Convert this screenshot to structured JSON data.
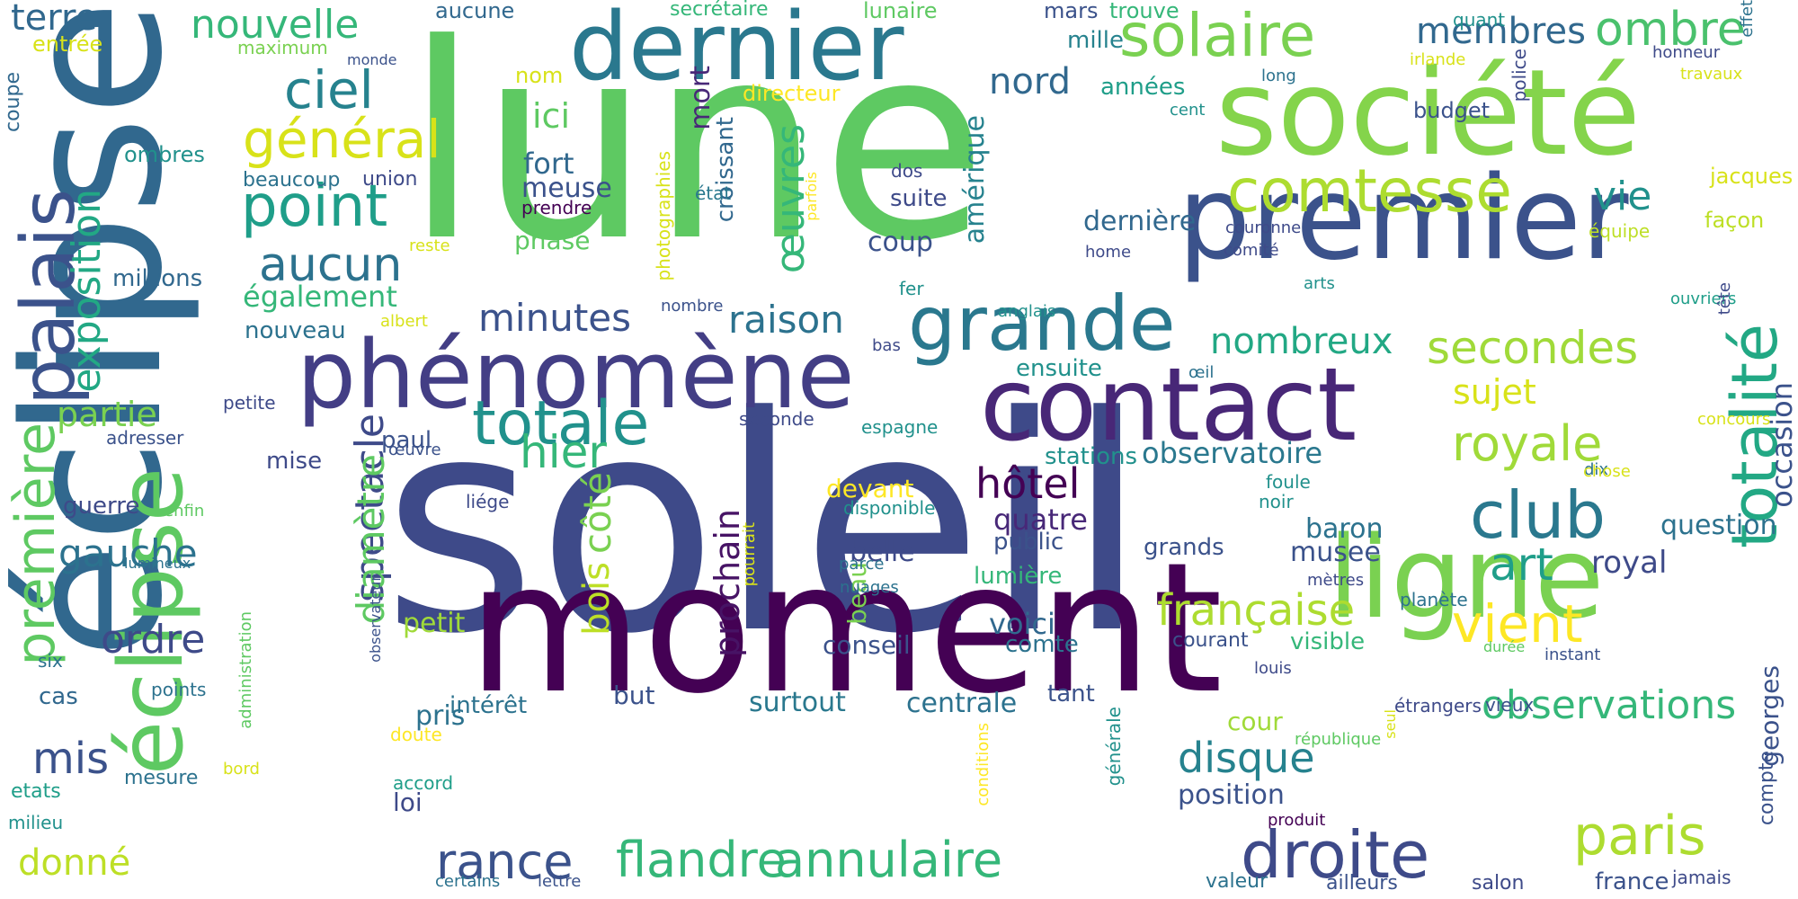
{
  "words": [
    {
      "text": "soleil",
      "color": "#3e4a89"
    },
    {
      "text": "lune",
      "color": "#5ec962"
    },
    {
      "text": "éclipse",
      "color": "#31688e"
    },
    {
      "text": "moment",
      "color": "#440154"
    },
    {
      "text": "société",
      "color": "#84d44b"
    },
    {
      "text": "premier",
      "color": "#3b528b"
    },
    {
      "text": "ligne",
      "color": "#7ad151"
    },
    {
      "text": "contact",
      "color": "#482777"
    },
    {
      "text": "dernier",
      "color": "#2a788e"
    },
    {
      "text": "phénomène",
      "color": "#433e85"
    },
    {
      "text": "éclipse",
      "color": "#5ec962"
    },
    {
      "text": "palais",
      "color": "#3b528b"
    },
    {
      "text": "solaire",
      "color": "#7ad151"
    },
    {
      "text": "comtesse",
      "color": "#addc30"
    },
    {
      "text": "totalité",
      "color": "#22a884"
    },
    {
      "text": "grande",
      "color": "#2a788e"
    },
    {
      "text": "droite",
      "color": "#3e4a89"
    },
    {
      "text": "totale",
      "color": "#21918c"
    },
    {
      "text": "club",
      "color": "#2a788e"
    },
    {
      "text": "point",
      "color": "#1f9e89"
    },
    {
      "text": "première",
      "color": "#5ec962"
    },
    {
      "text": "annulaire",
      "color": "#35b779"
    },
    {
      "text": "flandre",
      "color": "#35b779"
    },
    {
      "text": "paris",
      "color": "#addc30"
    },
    {
      "text": "royale",
      "color": "#a0da39"
    },
    {
      "text": "rance",
      "color": "#3b528b"
    },
    {
      "text": "ciel",
      "color": "#26828e"
    },
    {
      "text": "général",
      "color": "#d8e219"
    },
    {
      "text": "secondes",
      "color": "#a0da39"
    },
    {
      "text": "exposition",
      "color": "#22a884"
    },
    {
      "text": "observations",
      "color": "#35b779"
    },
    {
      "text": "française",
      "color": "#addc30"
    },
    {
      "text": "spectacle",
      "color": "#3e4a89"
    },
    {
      "text": "vient",
      "color": "#fde725"
    },
    {
      "text": "aucun",
      "color": "#2c728e"
    },
    {
      "text": "ombre",
      "color": "#4ac16d"
    },
    {
      "text": "hôtel",
      "color": "#440154"
    },
    {
      "text": "membres",
      "color": "#31688e"
    },
    {
      "text": "disque",
      "color": "#26828e"
    },
    {
      "text": "art",
      "color": "#1f9e89"
    },
    {
      "text": "nouvelle",
      "color": "#35b779"
    },
    {
      "text": "diamètre",
      "color": "#5ec962"
    },
    {
      "text": "minutes",
      "color": "#3b528b"
    },
    {
      "text": "raison",
      "color": "#2c728e"
    },
    {
      "text": "hier",
      "color": "#35b779"
    },
    {
      "text": "nombreux",
      "color": "#22a884"
    },
    {
      "text": "côté",
      "color": "#7ad151"
    },
    {
      "text": "ordre",
      "color": "#3e4a89"
    },
    {
      "text": "gauche",
      "color": "#2c728e"
    },
    {
      "text": "œuvres",
      "color": "#35b779"
    },
    {
      "text": "vie",
      "color": "#21918c"
    },
    {
      "text": "bois",
      "color": "#bddf26"
    },
    {
      "text": "mis",
      "color": "#3b528b"
    },
    {
      "text": "terre",
      "color": "#31688e"
    },
    {
      "text": "partie",
      "color": "#7ad151"
    },
    {
      "text": "ici",
      "color": "#5ec962"
    },
    {
      "text": "donné",
      "color": "#bddf26"
    },
    {
      "text": "prochain",
      "color": "#471365"
    },
    {
      "text": "sujet",
      "color": "#d8e219"
    },
    {
      "text": "observatoire",
      "color": "#2a788e"
    },
    {
      "text": "occasion",
      "color": "#3b528b"
    },
    {
      "text": "nord",
      "color": "#31688e"
    },
    {
      "text": "fort",
      "color": "#31688e"
    },
    {
      "text": "royal",
      "color": "#3e4a89"
    },
    {
      "text": "voici",
      "color": "#31688e"
    },
    {
      "text": "quatre",
      "color": "#482878"
    },
    {
      "text": "mort",
      "color": "#482878"
    },
    {
      "text": "croissant",
      "color": "#31688e"
    },
    {
      "text": "également",
      "color": "#35b779"
    },
    {
      "text": "nouveau",
      "color": "#2c728e"
    },
    {
      "text": "amérique",
      "color": "#26828e"
    },
    {
      "text": "dernière",
      "color": "#31688e"
    },
    {
      "text": "georges",
      "color": "#3b528b"
    },
    {
      "text": "question",
      "color": "#2c728e"
    },
    {
      "text": "position",
      "color": "#3b528b"
    },
    {
      "text": "belle",
      "color": "#3e4a89"
    },
    {
      "text": "baron",
      "color": "#2c728e"
    },
    {
      "text": "musee",
      "color": "#3b528b"
    },
    {
      "text": "centrale",
      "color": "#2c728e"
    },
    {
      "text": "surtout",
      "color": "#2a788e"
    },
    {
      "text": "petit",
      "color": "#a0da39"
    },
    {
      "text": "millions",
      "color": "#31688e"
    },
    {
      "text": "meuse",
      "color": "#3b528b"
    },
    {
      "text": "phase",
      "color": "#5ec962"
    },
    {
      "text": "coup",
      "color": "#3b528b"
    },
    {
      "text": "suite",
      "color": "#3e4a89"
    },
    {
      "text": "ensuite",
      "color": "#21918c"
    },
    {
      "text": "stations",
      "color": "#21918c"
    },
    {
      "text": "paul",
      "color": "#3b528b"
    },
    {
      "text": "mise",
      "color": "#3e4a89"
    },
    {
      "text": "guerre",
      "color": "#3e4a89"
    },
    {
      "text": "cas",
      "color": "#31688e"
    },
    {
      "text": "pris",
      "color": "#2c728e"
    },
    {
      "text": "intérêt",
      "color": "#2c728e"
    },
    {
      "text": "but",
      "color": "#3b528b"
    },
    {
      "text": "loi",
      "color": "#3e4a89"
    },
    {
      "text": "conseil",
      "color": "#3b528b"
    },
    {
      "text": "comte",
      "color": "#2c728e"
    },
    {
      "text": "tant",
      "color": "#3b528b"
    },
    {
      "text": "lumière",
      "color": "#35b779"
    },
    {
      "text": "public",
      "color": "#3b528b"
    },
    {
      "text": "grands",
      "color": "#3b528b"
    },
    {
      "text": "devant",
      "color": "#fde725"
    },
    {
      "text": "beau",
      "color": "#7ad151"
    },
    {
      "text": "cour",
      "color": "#a0da39"
    },
    {
      "text": "visible",
      "color": "#35b779"
    },
    {
      "text": "années",
      "color": "#1f9e89"
    },
    {
      "text": "mille",
      "color": "#26828e"
    },
    {
      "text": "mars",
      "color": "#3b528b"
    },
    {
      "text": "trouve",
      "color": "#35b779"
    },
    {
      "text": "aucune",
      "color": "#31688e"
    },
    {
      "text": "secrétaire",
      "color": "#35b779"
    },
    {
      "text": "lunaire",
      "color": "#5ec962"
    },
    {
      "text": "directeur",
      "color": "#fde725"
    },
    {
      "text": "nom",
      "color": "#d8e219"
    },
    {
      "text": "entrée",
      "color": "#d8e219"
    },
    {
      "text": "maximum",
      "color": "#7ad151"
    },
    {
      "text": "monde",
      "color": "#3b528b"
    },
    {
      "text": "coupe",
      "color": "#31688e"
    },
    {
      "text": "ombres",
      "color": "#21918c"
    },
    {
      "text": "beaucoup",
      "color": "#2c728e"
    },
    {
      "text": "union",
      "color": "#3e4a89"
    },
    {
      "text": "prendre",
      "color": "#440154"
    },
    {
      "text": "reste",
      "color": "#d8e219"
    },
    {
      "text": "albert",
      "color": "#d8e219"
    },
    {
      "text": "nombre",
      "color": "#3b528b"
    },
    {
      "text": "bas",
      "color": "#3e4a89"
    },
    {
      "text": "petite",
      "color": "#3e4a89"
    },
    {
      "text": "adresser",
      "color": "#3b528b"
    },
    {
      "text": "enfin",
      "color": "#5ec962"
    },
    {
      "text": "lumineux",
      "color": "#2c728e"
    },
    {
      "text": "administration",
      "color": "#5ec962"
    },
    {
      "text": "observateur",
      "color": "#3b528b"
    },
    {
      "text": "six",
      "color": "#2c728e"
    },
    {
      "text": "points",
      "color": "#2c728e"
    },
    {
      "text": "mesure",
      "color": "#2c728e"
    },
    {
      "text": "bord",
      "color": "#d8e219"
    },
    {
      "text": "etats",
      "color": "#1f9e89"
    },
    {
      "text": "milieu",
      "color": "#21918c"
    },
    {
      "text": "doute",
      "color": "#fde725"
    },
    {
      "text": "accord",
      "color": "#1f9e89"
    },
    {
      "text": "certains",
      "color": "#2c728e"
    },
    {
      "text": "lettre",
      "color": "#3b528b"
    },
    {
      "text": "œuvre",
      "color": "#3b528b"
    },
    {
      "text": "seconde",
      "color": "#3e4a89"
    },
    {
      "text": "espagne",
      "color": "#21918c"
    },
    {
      "text": "liége",
      "color": "#3e4a89"
    },
    {
      "text": "disponible",
      "color": "#21918c"
    },
    {
      "text": "pourrait",
      "color": "#d8e219"
    },
    {
      "text": "parce",
      "color": "#2c728e"
    },
    {
      "text": "nuages",
      "color": "#2c728e"
    },
    {
      "text": "parfois",
      "color": "#fde725"
    },
    {
      "text": "photographies",
      "color": "#d8e219"
    },
    {
      "text": "état",
      "color": "#2a788e"
    },
    {
      "text": "dos",
      "color": "#3e4a89"
    },
    {
      "text": "fer",
      "color": "#21918c"
    },
    {
      "text": "anglais",
      "color": "#21918c"
    },
    {
      "text": "home",
      "color": "#3e4a89"
    },
    {
      "text": "comité",
      "color": "#3e4a89"
    },
    {
      "text": "couronne",
      "color": "#3e4a89"
    },
    {
      "text": "arts",
      "color": "#21918c"
    },
    {
      "text": "cent",
      "color": "#21918c"
    },
    {
      "text": "long",
      "color": "#2c728e"
    },
    {
      "text": "irlande",
      "color": "#d8e219"
    },
    {
      "text": "police",
      "color": "#3e4a89"
    },
    {
      "text": "budget",
      "color": "#3b528b"
    },
    {
      "text": "quant",
      "color": "#21918c"
    },
    {
      "text": "honneur",
      "color": "#3e4a89"
    },
    {
      "text": "travaux",
      "color": "#d8e219"
    },
    {
      "text": "effet",
      "color": "#2c728e"
    },
    {
      "text": "jacques",
      "color": "#d8e219"
    },
    {
      "text": "façon",
      "color": "#bddf26"
    },
    {
      "text": "équipe",
      "color": "#bddf26"
    },
    {
      "text": "ouvriers",
      "color": "#1f9e89"
    },
    {
      "text": "tête",
      "color": "#3e4a89"
    },
    {
      "text": "œil",
      "color": "#2c728e"
    },
    {
      "text": "concours",
      "color": "#d8e219"
    },
    {
      "text": "dix",
      "color": "#2c728e"
    },
    {
      "text": "chose",
      "color": "#d8e219"
    },
    {
      "text": "foule",
      "color": "#21918c"
    },
    {
      "text": "noir",
      "color": "#21918c"
    },
    {
      "text": "mètres",
      "color": "#3e4a89"
    },
    {
      "text": "planète",
      "color": "#2c728e"
    },
    {
      "text": "courant",
      "color": "#3b528b"
    },
    {
      "text": "louis",
      "color": "#3e4a89"
    },
    {
      "text": "durée",
      "color": "#5ec962"
    },
    {
      "text": "instant",
      "color": "#3b528b"
    },
    {
      "text": "vieux",
      "color": "#3b528b"
    },
    {
      "text": "étrangers",
      "color": "#3e4a89"
    },
    {
      "text": "seul",
      "color": "#d8e219"
    },
    {
      "text": "république",
      "color": "#5ec962"
    },
    {
      "text": "conditions",
      "color": "#fde725"
    },
    {
      "text": "générale",
      "color": "#21918c"
    },
    {
      "text": "produit",
      "color": "#440154"
    },
    {
      "text": "compte",
      "color": "#3b528b"
    },
    {
      "text": "valeur",
      "color": "#2c728e"
    },
    {
      "text": "ailleurs",
      "color": "#3b528b"
    },
    {
      "text": "salon",
      "color": "#3e4a89"
    },
    {
      "text": "france",
      "color": "#3b528b"
    },
    {
      "text": "jamais",
      "color": "#3e4a89"
    }
  ]
}
